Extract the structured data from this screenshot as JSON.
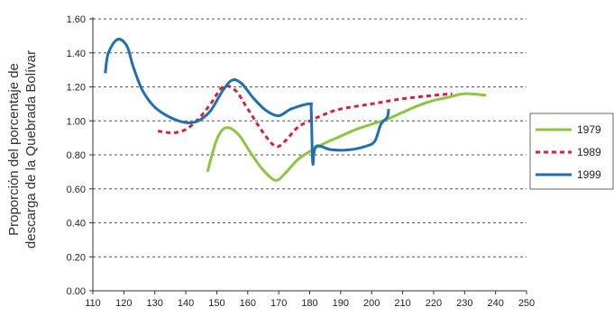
{
  "chart_data": {
    "type": "line",
    "ylabel": [
      "Proporción del porcentaje de",
      "descarga de la Quebrada Bolívar"
    ],
    "xlabel": "",
    "title": "",
    "xlim": [
      110,
      250
    ],
    "ylim": [
      0,
      1.6
    ],
    "x_ticks": [
      "110",
      "120",
      "130",
      "140",
      "150",
      "160",
      "170",
      "180",
      "190",
      "200",
      "210",
      "220",
      "230",
      "240",
      "250"
    ],
    "y_ticks": [
      "0.00",
      "0.20",
      "0.40",
      "0.60",
      "0.80",
      "1.00",
      "1.20",
      "1.40",
      "1.60"
    ],
    "grid": "horizontal-dashed",
    "legend_position": "right",
    "series": [
      {
        "name": "1979",
        "color": "#8cc63f",
        "dash": "solid",
        "points": [
          [
            147,
            0.7
          ],
          [
            150,
            0.89
          ],
          [
            153,
            0.96
          ],
          [
            157,
            0.92
          ],
          [
            161,
            0.81
          ],
          [
            165,
            0.71
          ],
          [
            169,
            0.65
          ],
          [
            172,
            0.69
          ],
          [
            176,
            0.77
          ],
          [
            180,
            0.82
          ],
          [
            185,
            0.87
          ],
          [
            190,
            0.91
          ],
          [
            195,
            0.95
          ],
          [
            200,
            0.98
          ],
          [
            205,
            1.01
          ],
          [
            210,
            1.05
          ],
          [
            215,
            1.09
          ],
          [
            220,
            1.12
          ],
          [
            225,
            1.14
          ],
          [
            230,
            1.16
          ],
          [
            237,
            1.15
          ]
        ]
      },
      {
        "name": "1989",
        "color": "#d2233c",
        "dash": "dashed",
        "points": [
          [
            131,
            0.94
          ],
          [
            136,
            0.93
          ],
          [
            140,
            0.95
          ],
          [
            144,
            1.01
          ],
          [
            148,
            1.1
          ],
          [
            152,
            1.2
          ],
          [
            156,
            1.18
          ],
          [
            160,
            1.07
          ],
          [
            165,
            0.93
          ],
          [
            169,
            0.85
          ],
          [
            172,
            0.88
          ],
          [
            176,
            0.96
          ],
          [
            180,
            1.0
          ],
          [
            185,
            1.04
          ],
          [
            190,
            1.07
          ],
          [
            200,
            1.1
          ],
          [
            210,
            1.13
          ],
          [
            220,
            1.15
          ],
          [
            226,
            1.16
          ]
        ]
      },
      {
        "name": "1999",
        "color": "#1f6fb2",
        "dash": "solid",
        "points": [
          [
            114,
            1.28
          ],
          [
            115,
            1.4
          ],
          [
            118,
            1.48
          ],
          [
            121,
            1.44
          ],
          [
            123,
            1.32
          ],
          [
            126,
            1.18
          ],
          [
            130,
            1.08
          ],
          [
            135,
            1.02
          ],
          [
            140,
            0.99
          ],
          [
            144,
            1.0
          ],
          [
            148,
            1.06
          ],
          [
            152,
            1.18
          ],
          [
            155,
            1.24
          ],
          [
            158,
            1.22
          ],
          [
            162,
            1.13
          ],
          [
            166,
            1.06
          ],
          [
            170,
            1.03
          ],
          [
            174,
            1.07
          ],
          [
            180,
            1.1
          ],
          [
            180.5,
            1.06
          ],
          [
            181,
            0.75
          ],
          [
            182,
            0.85
          ],
          [
            187,
            0.83
          ],
          [
            193,
            0.83
          ],
          [
            198,
            0.85
          ],
          [
            201,
            0.88
          ],
          [
            203,
            0.98
          ],
          [
            205,
            1.02
          ],
          [
            205.5,
            1.07
          ]
        ]
      }
    ]
  }
}
